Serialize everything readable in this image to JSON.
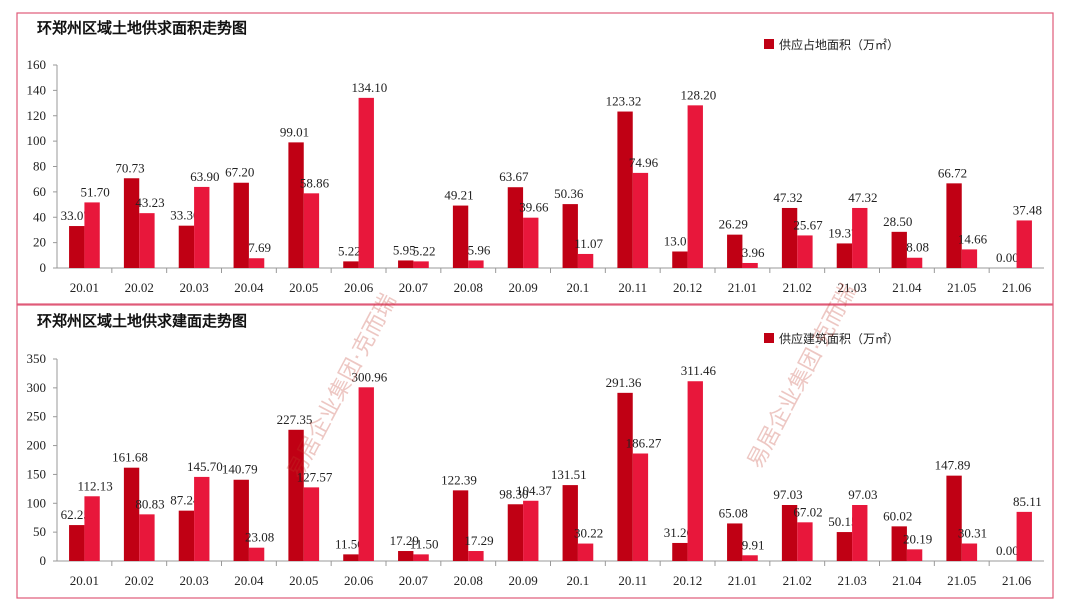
{
  "watermark": "易居企业集团·克而瑞",
  "colors": {
    "bar_a": "#C00014",
    "bar_b": "#E8173B",
    "frame": "#E05A78",
    "axis": "#999999"
  },
  "chart_data": [
    {
      "type": "bar",
      "title": "环郑州区域土地供求面积走势图",
      "legend": {
        "position": "top-right",
        "entries": [
          "供应占地面积（万㎡）"
        ]
      },
      "categories": [
        "20.01",
        "20.02",
        "20.03",
        "20.04",
        "20.05",
        "20.06",
        "20.07",
        "20.08",
        "20.09",
        "20.1",
        "20.11",
        "20.12",
        "21.01",
        "21.02",
        "21.03",
        "21.04",
        "21.05",
        "21.06"
      ],
      "series": [
        {
          "name": "供应占地面积（万㎡）",
          "values": [
            33.07,
            70.73,
            33.36,
            67.2,
            99.01,
            5.22,
            5.95,
            49.21,
            63.67,
            50.36,
            123.32,
            13.01,
            26.29,
            47.32,
            19.37,
            28.5,
            66.72,
            0.0
          ],
          "labels": [
            "33.07",
            "70.73",
            "33.36",
            "67.20",
            "99.01",
            "5.22",
            "5.95",
            "49.21",
            "63.67",
            "50.36",
            "123.32",
            "13.01",
            "26.29",
            "47.32",
            "19.37",
            "28.50",
            "66.72",
            "0.00"
          ]
        },
        {
          "name": "",
          "values": [
            51.7,
            43.23,
            63.9,
            7.69,
            58.86,
            134.1,
            5.22,
            5.96,
            39.66,
            11.07,
            74.96,
            128.2,
            3.96,
            25.67,
            47.32,
            8.08,
            14.66,
            37.48
          ],
          "labels": [
            "51.70",
            "43.23",
            "63.90",
            "7.69",
            "58.86",
            "134.10",
            "5.22",
            "5.96",
            "39.66",
            "11.07",
            "74.96",
            "128.20",
            "3.96",
            "25.67",
            "47.32",
            "8.08",
            "14.66",
            "37.48"
          ]
        }
      ],
      "yticks": [
        "0",
        "20",
        "40",
        "60",
        "80",
        "100",
        "120",
        "140",
        "160"
      ],
      "ylim": [
        0,
        160
      ],
      "grid": false
    },
    {
      "type": "bar",
      "title": "环郑州区域土地供求建面走势图",
      "legend": {
        "position": "top-right",
        "entries": [
          "供应建筑面积（万㎡）"
        ]
      },
      "categories": [
        "20.01",
        "20.02",
        "20.03",
        "20.04",
        "20.05",
        "20.06",
        "20.07",
        "20.08",
        "20.09",
        "20.1",
        "20.11",
        "20.12",
        "21.01",
        "21.02",
        "21.03",
        "21.04",
        "21.05",
        "21.06"
      ],
      "series": [
        {
          "name": "供应建筑面积（万㎡）",
          "values": [
            62.25,
            161.68,
            87.24,
            140.79,
            227.35,
            11.5,
            17.29,
            122.39,
            98.3,
            131.51,
            291.36,
            31.26,
            65.08,
            97.03,
            50.15,
            60.02,
            147.89,
            0.0
          ],
          "labels": [
            "62.25",
            "161.68",
            "87.24",
            "140.79",
            "227.35",
            "11.50",
            "17.29",
            "122.39",
            "98.30",
            "131.51",
            "291.36",
            "31.26",
            "65.08",
            "97.03",
            "50.15",
            "60.02",
            "147.89",
            "0.00"
          ]
        },
        {
          "name": "",
          "values": [
            112.13,
            80.83,
            145.7,
            23.08,
            127.57,
            300.96,
            11.5,
            17.29,
            104.37,
            30.22,
            186.27,
            311.46,
            9.91,
            67.02,
            97.03,
            20.19,
            30.31,
            85.11
          ],
          "labels": [
            "112.13",
            "80.83",
            "145.70",
            "23.08",
            "127.57",
            "300.96",
            "11.50",
            "17.29",
            "104.37",
            "30.22",
            "186.27",
            "311.46",
            "9.91",
            "67.02",
            "97.03",
            "20.19",
            "30.31",
            "85.11"
          ]
        }
      ],
      "yticks": [
        "0",
        "50",
        "100",
        "150",
        "200",
        "250",
        "300",
        "350"
      ],
      "ylim": [
        0,
        350
      ],
      "grid": false
    }
  ]
}
